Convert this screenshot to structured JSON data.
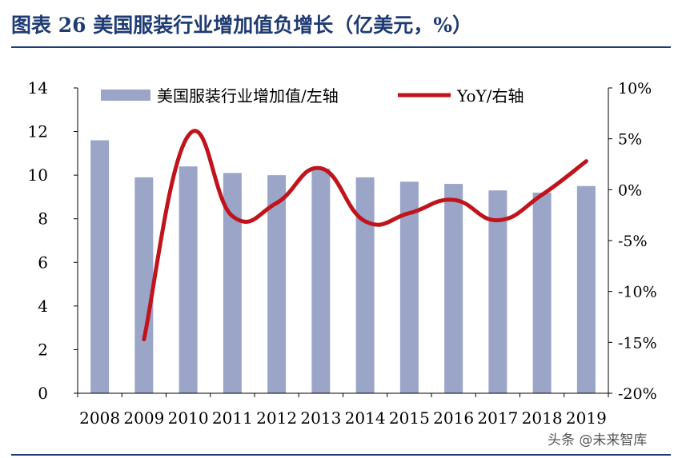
{
  "figure": {
    "title": "图表 26 美国服装行业增加值负增长（亿美元，%）",
    "watermark": "头条 @未来智库"
  },
  "colors": {
    "bar": "#9aa5c8",
    "line": "#c0141c",
    "title": "#1f3b73",
    "axis": "#000000"
  },
  "chart_data": {
    "type": "bar",
    "categories": [
      "2008",
      "2009",
      "2010",
      "2011",
      "2012",
      "2013",
      "2014",
      "2015",
      "2016",
      "2017",
      "2018",
      "2019"
    ],
    "series": [
      {
        "name": "美国服装行业增加值/左轴",
        "type": "bar",
        "axis": "left",
        "values": [
          11.6,
          9.9,
          10.4,
          10.1,
          10.0,
          10.3,
          9.9,
          9.7,
          9.6,
          9.3,
          9.2,
          9.5
        ]
      },
      {
        "name": "YoY/右轴",
        "type": "line",
        "axis": "right",
        "values": [
          null,
          -14.7,
          5.3,
          -2.6,
          -1.3,
          2.1,
          -3.1,
          -2.3,
          -1.0,
          -3.0,
          -0.5,
          2.8
        ]
      }
    ],
    "y_left": {
      "min": 0,
      "max": 14,
      "ticks": [
        "0",
        "2",
        "4",
        "6",
        "8",
        "10",
        "12",
        "14"
      ]
    },
    "y_right": {
      "min": -20,
      "max": 10,
      "ticks": [
        "-20%",
        "-15%",
        "-10%",
        "-5%",
        "0%",
        "5%",
        "10%"
      ]
    },
    "legend_position": "top",
    "grid": false
  }
}
